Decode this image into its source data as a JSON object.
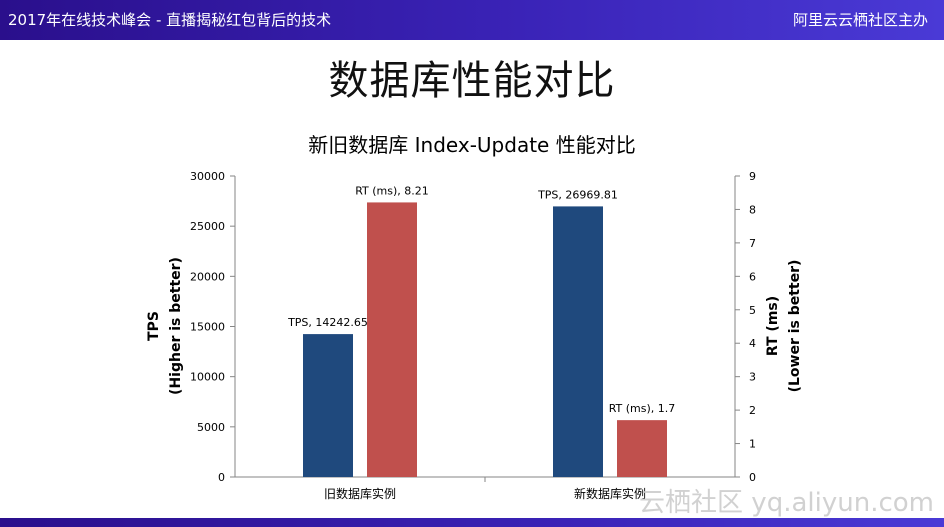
{
  "header": {
    "left_title": "2017年在线技术峰会 - 直播揭秘红包背后的技术",
    "right_title": "阿里云云栖社区主办"
  },
  "slide": {
    "title": "数据库性能对比"
  },
  "watermark": "云栖社区 yq.aliyun.com",
  "colors": {
    "tps": "#1f497d",
    "rt": "#c0504d"
  },
  "chart_data": {
    "type": "bar",
    "title": "新旧数据库 Index-Update 性能对比",
    "categories": [
      "旧数据库实例",
      "新数据库实例"
    ],
    "y_left": {
      "label_line1": "TPS",
      "label_line2": "(Higher is better)",
      "ylim": [
        0,
        30000
      ],
      "ticks": [
        0,
        5000,
        10000,
        15000,
        20000,
        25000,
        30000
      ]
    },
    "y_right": {
      "label_line1": "RT (ms)",
      "label_line2": "(Lower is better)",
      "ylim": [
        0,
        9
      ],
      "ticks": [
        0,
        1,
        2,
        3,
        4,
        5,
        6,
        7,
        8,
        9
      ]
    },
    "series": [
      {
        "key": "tps",
        "axis": "left",
        "color": "#1f497d",
        "values": [
          14242.65,
          26969.81
        ],
        "data_labels": [
          "TPS, 14242.65",
          "TPS, 26969.81"
        ]
      },
      {
        "key": "rt",
        "axis": "right",
        "color": "#c0504d",
        "values": [
          8.21,
          1.7
        ],
        "data_labels": [
          "RT (ms), 8.21",
          "RT (ms), 1.7"
        ]
      }
    ],
    "grid": false,
    "legend": "none"
  }
}
